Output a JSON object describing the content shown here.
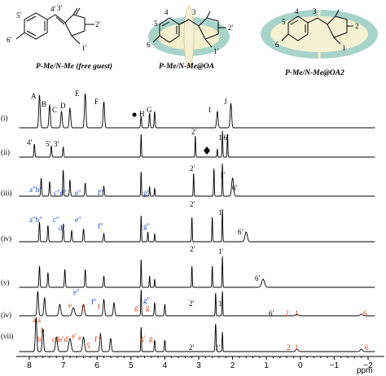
{
  "structures": {
    "free_guest": {
      "caption": "P-Me/N-Me (free guest)",
      "atom_labels": [
        "4′",
        "3′",
        "5′",
        "6′",
        "2′",
        "1′"
      ]
    },
    "oa_complex": {
      "caption": "P-Me/N-Me@OA",
      "atom_labels": [
        "4",
        "3",
        "5",
        "6",
        "2′",
        "1′"
      ]
    },
    "oa2_complex": {
      "caption": "P-Me/N-Me@OA2",
      "atom_labels": [
        "4",
        "3",
        "5",
        "6",
        "2",
        "1"
      ]
    }
  },
  "spectra": {
    "rows": [
      "(i)",
      "(ii)",
      "(iii)",
      "(iv)",
      "(v)",
      "(iv)",
      "(vii)"
    ],
    "row_i_peak_labels": [
      "A",
      "B",
      "C",
      "D",
      "E",
      "F",
      "H",
      "G",
      "I",
      "J"
    ],
    "row_ii_peak_labels": [
      "4′",
      "5′",
      "3′",
      "2′",
      "1′6′"
    ],
    "row_iii_blue_labels": [
      "a″b″",
      "c″d″",
      "e″",
      "f″",
      "g″"
    ],
    "row_iii_black_labels": [
      "2′",
      "1′",
      "6′"
    ],
    "row_iv_blue_labels": [
      "a″b″",
      "c″",
      "d″",
      "e″",
      "f″",
      "g″"
    ],
    "row_iv_black_labels": [
      "2′",
      "1′",
      "6′"
    ],
    "row_v_labels": [
      "2′",
      "1′",
      "6′"
    ],
    "row_vi_labels": [
      "e″",
      "f″",
      "g″",
      "e",
      "f",
      "5",
      "g′",
      "g",
      "2′",
      "1′",
      "6′",
      "2",
      "1",
      "6"
    ],
    "row_vii_labels": [
      "a′a",
      "b",
      "b′",
      "cde′d′",
      "e′",
      "e",
      "5",
      "f′f",
      "g′",
      "g",
      "2′",
      "1′",
      "2",
      "1",
      "6"
    ]
  },
  "x_axis": {
    "title": "ppm",
    "ticks": [
      "8",
      "7",
      "6",
      "5",
      "4",
      "3",
      "2",
      "1",
      "0",
      "−1",
      "−2"
    ]
  }
}
